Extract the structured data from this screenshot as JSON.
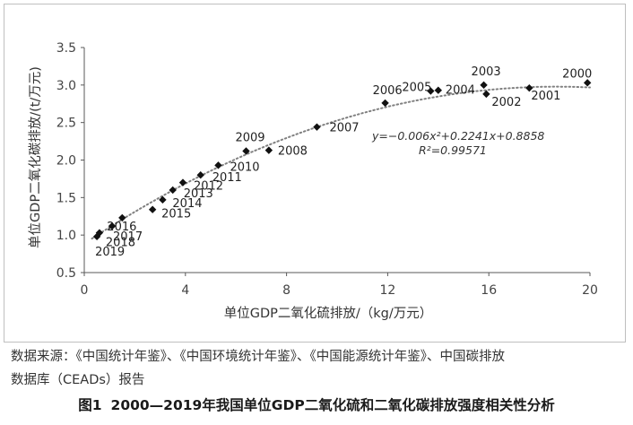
{
  "chart_data": {
    "type": "scatter",
    "xlabel": "单位GDP二氧化硫排放/（kg/万元）",
    "ylabel": "单位GDP二氧化碳排放/(t/万元)",
    "xlim": [
      0,
      20
    ],
    "ylim": [
      0.5,
      3.5
    ],
    "xticks": [
      0,
      4,
      8,
      12,
      16,
      20
    ],
    "yticks": [
      0.5,
      1.0,
      1.5,
      2.0,
      2.5,
      3.0,
      3.5
    ],
    "xtick_labels": [
      "0",
      "4",
      "8",
      "12",
      "16",
      "20"
    ],
    "ytick_labels": [
      "0.5",
      "1.0",
      "1.5",
      "2.0",
      "2.5",
      "3.0",
      "3.5"
    ],
    "grid": false,
    "points": [
      {
        "label": "2000",
        "x": 19.9,
        "y": 3.03
      },
      {
        "label": "2001",
        "x": 17.6,
        "y": 2.96
      },
      {
        "label": "2002",
        "x": 15.9,
        "y": 2.88
      },
      {
        "label": "2003",
        "x": 15.8,
        "y": 3.0
      },
      {
        "label": "2004",
        "x": 14.0,
        "y": 2.93
      },
      {
        "label": "2005",
        "x": 13.7,
        "y": 2.92
      },
      {
        "label": "2006",
        "x": 11.9,
        "y": 2.76
      },
      {
        "label": "2007",
        "x": 9.2,
        "y": 2.44
      },
      {
        "label": "2008",
        "x": 7.3,
        "y": 2.13
      },
      {
        "label": "2009",
        "x": 6.4,
        "y": 2.12
      },
      {
        "label": "2010",
        "x": 5.3,
        "y": 1.93
      },
      {
        "label": "2011",
        "x": 4.6,
        "y": 1.8
      },
      {
        "label": "2012",
        "x": 3.9,
        "y": 1.7
      },
      {
        "label": "2013",
        "x": 3.5,
        "y": 1.6
      },
      {
        "label": "2014",
        "x": 3.1,
        "y": 1.47
      },
      {
        "label": "2015",
        "x": 2.7,
        "y": 1.34
      },
      {
        "label": "2016",
        "x": 1.5,
        "y": 1.23
      },
      {
        "label": "2017",
        "x": 1.1,
        "y": 1.12
      },
      {
        "label": "2018",
        "x": 0.6,
        "y": 1.03
      },
      {
        "label": "2019",
        "x": 0.5,
        "y": 0.98
      }
    ],
    "trendline": {
      "type": "polynomial",
      "style": "dotted",
      "a": -0.006,
      "b": 0.2241,
      "c": 0.8858,
      "equation_text": "y=−0.006x²+0.2241x+0.8858",
      "r2_text": "R²=0.99571"
    }
  },
  "source_note": {
    "line1": "数据来源：《中国统计年鉴》、《中国环境统计年鉴》、《中国能源统计年鉴》、中国碳排放",
    "line2": "数据库（CEADs）报告"
  },
  "caption": {
    "figure_number": "图1",
    "title": "2000—2019年我国单位GDP二氧化硫和二氧化碳排放强度相关性分析"
  },
  "colors": {
    "marker": "#111111",
    "trendline": "#808080",
    "axis": "#595959",
    "frame": "#bfbfbf"
  }
}
